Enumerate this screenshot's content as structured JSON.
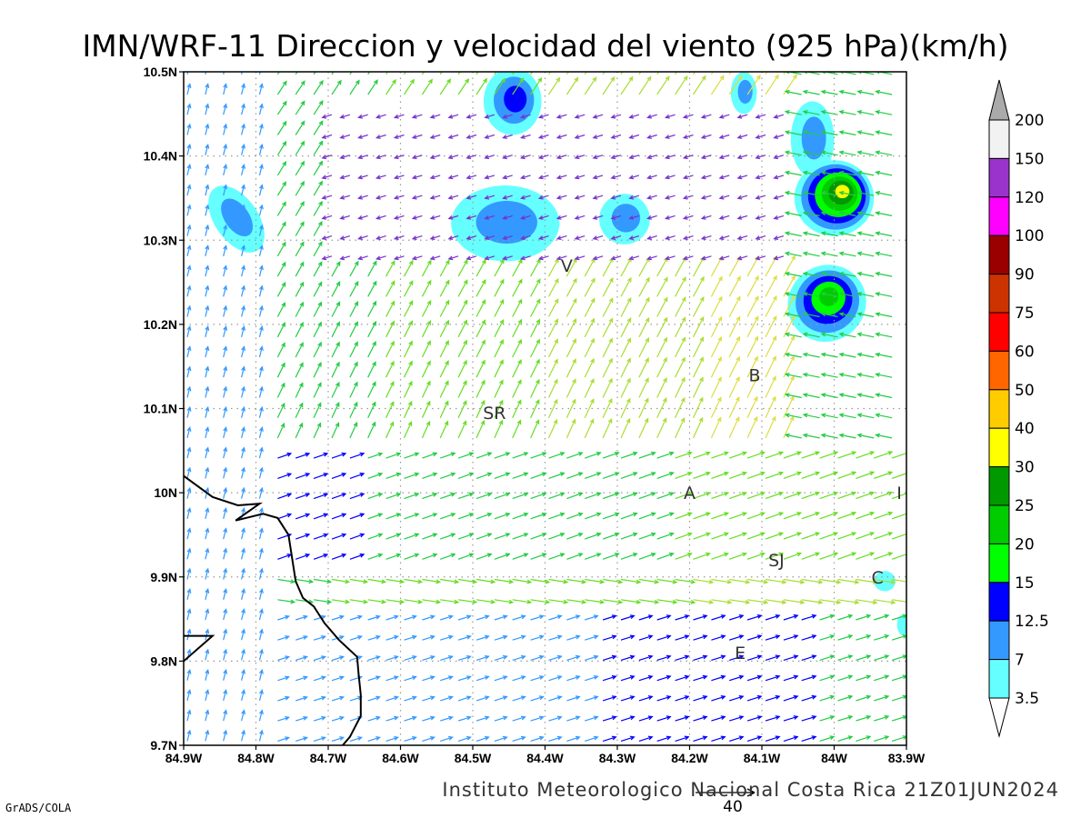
{
  "page": {
    "title": "IMN/WRF-11 Direccion y velocidad del viento (925 hPa)(km/h)",
    "footer": "Instituto Meteorologico Nacional Costa Rica 21Z01JUN2024",
    "credit": "GrADS/COLA",
    "reference_vector_value": "40"
  },
  "chart_data": {
    "type": "vector-field",
    "title": "IMN/WRF-11 Direccion y velocidad del viento (925 hPa)(km/h)",
    "xlim": [
      -84.9,
      -83.9
    ],
    "ylim": [
      9.7,
      10.5
    ],
    "xticks": [
      {
        "value": -84.9,
        "label": "84.9W"
      },
      {
        "value": -84.8,
        "label": "84.8W"
      },
      {
        "value": -84.7,
        "label": "84.7W"
      },
      {
        "value": -84.6,
        "label": "84.6W"
      },
      {
        "value": -84.5,
        "label": "84.5W"
      },
      {
        "value": -84.4,
        "label": "84.4W"
      },
      {
        "value": -84.3,
        "label": "84.3W"
      },
      {
        "value": -84.2,
        "label": "84.2W"
      },
      {
        "value": -84.1,
        "label": "84.1W"
      },
      {
        "value": -84.0,
        "label": "84W"
      },
      {
        "value": -83.9,
        "label": "83.9W"
      }
    ],
    "yticks": [
      {
        "value": 9.7,
        "label": "9.7N"
      },
      {
        "value": 9.8,
        "label": "9.8N"
      },
      {
        "value": 9.9,
        "label": "9.9N"
      },
      {
        "value": 10.0,
        "label": "10N"
      },
      {
        "value": 10.1,
        "label": "10.1N"
      },
      {
        "value": 10.2,
        "label": "10.2N"
      },
      {
        "value": 10.3,
        "label": "10.3N"
      },
      {
        "value": 10.4,
        "label": "10.4N"
      },
      {
        "value": 10.5,
        "label": "10.5N"
      }
    ],
    "grid": true,
    "colorbar": {
      "levels": [
        "3.5",
        "7",
        "12.5",
        "15",
        "20",
        "25",
        "30",
        "40",
        "50",
        "60",
        "75",
        "90",
        "100",
        "120",
        "150",
        "200"
      ],
      "colors": [
        "#ffffff",
        "#66ffff",
        "#3399ff",
        "#0000ff",
        "#00ff00",
        "#00cc00",
        "#009900",
        "#ffff00",
        "#ffcc00",
        "#ff6600",
        "#ff0000",
        "#cc3300",
        "#990000",
        "#ff00ff",
        "#9933cc",
        "#f2f2f2",
        "#aaaaaa"
      ]
    },
    "city_labels": [
      {
        "label": "V",
        "lon": -84.37,
        "lat": 10.27
      },
      {
        "label": "SR",
        "lon": -84.47,
        "lat": 10.095
      },
      {
        "label": "B",
        "lon": -84.11,
        "lat": 10.14
      },
      {
        "label": "A",
        "lon": -84.2,
        "lat": 10.0
      },
      {
        "label": "I",
        "lon": -83.91,
        "lat": 10.0
      },
      {
        "label": "SJ",
        "lon": -84.08,
        "lat": 9.92
      },
      {
        "label": "C",
        "lon": -83.94,
        "lat": 9.9
      },
      {
        "label": "E",
        "lon": -84.13,
        "lat": 9.81
      }
    ],
    "shading_regions": [
      {
        "name": "cell-north-top",
        "lon": -84.445,
        "lat": 10.465,
        "rx": 0.04,
        "ry": 0.04,
        "level": "12.5"
      },
      {
        "name": "cell-north-center",
        "lon": -84.455,
        "lat": 10.32,
        "rx": 0.075,
        "ry": 0.045,
        "level": "7"
      },
      {
        "name": "cell-north-center-east",
        "lon": -84.29,
        "lat": 10.325,
        "rx": 0.035,
        "ry": 0.03,
        "level": "7"
      },
      {
        "name": "cell-west",
        "lon": -84.827,
        "lat": 10.325,
        "rx": 0.03,
        "ry": 0.045,
        "level": "7"
      },
      {
        "name": "cell-ne-top",
        "lon": -84.125,
        "lat": 10.475,
        "rx": 0.018,
        "ry": 0.025,
        "level": "7"
      },
      {
        "name": "cell-ne-upper",
        "lon": -84.03,
        "lat": 10.42,
        "rx": 0.03,
        "ry": 0.045,
        "level": "7"
      },
      {
        "name": "cell-ne-core",
        "lon": -84.0,
        "lat": 10.35,
        "rx": 0.055,
        "ry": 0.045,
        "level": "30"
      },
      {
        "name": "cell-east-middle",
        "lon": -84.01,
        "lat": 10.225,
        "rx": 0.055,
        "ry": 0.045,
        "level": "20"
      },
      {
        "name": "cell-east-south",
        "lon": -83.93,
        "lat": 9.895,
        "rx": 0.015,
        "ry": 0.012,
        "level": "3.5"
      },
      {
        "name": "cell-east-edge",
        "lon": -83.905,
        "lat": 9.843,
        "rx": 0.008,
        "ry": 0.012,
        "level": "3.5"
      }
    ],
    "coastline": [
      [
        -84.9,
        10.02
      ],
      [
        -84.86,
        9.995
      ],
      [
        -84.825,
        9.985
      ],
      [
        -84.795,
        9.987
      ],
      [
        -84.828,
        9.967
      ],
      [
        -84.79,
        9.975
      ],
      [
        -84.77,
        9.97
      ],
      [
        -84.755,
        9.95
      ],
      [
        -84.745,
        9.895
      ],
      [
        -84.735,
        9.875
      ],
      [
        -84.72,
        9.865
      ],
      [
        -84.705,
        9.845
      ],
      [
        -84.685,
        9.825
      ],
      [
        -84.66,
        9.805
      ],
      [
        -84.658,
        9.785
      ],
      [
        -84.655,
        9.76
      ],
      [
        -84.655,
        9.735
      ],
      [
        -84.67,
        9.71
      ],
      [
        -84.68,
        9.7
      ]
    ],
    "peninsula": [
      [
        -84.9,
        9.8
      ],
      [
        -84.86,
        9.83
      ],
      [
        -84.9,
        9.83
      ]
    ]
  }
}
